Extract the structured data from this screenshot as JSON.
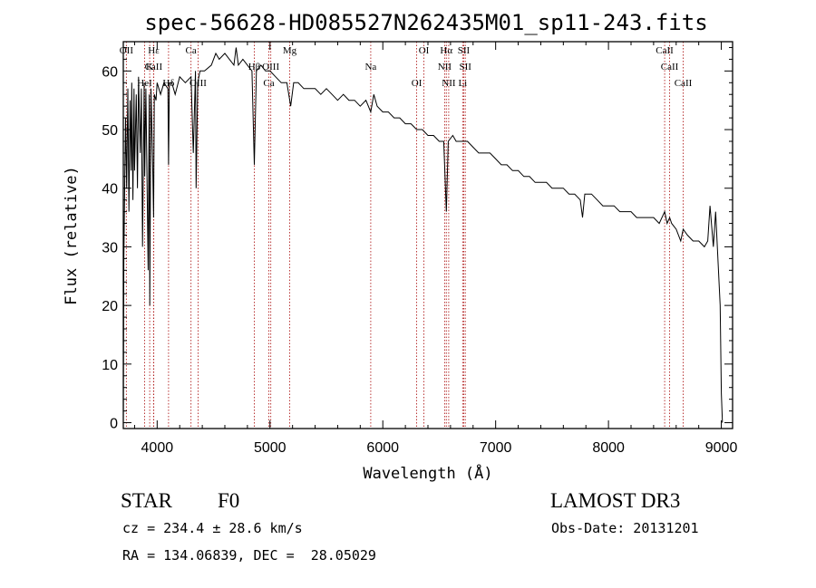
{
  "chart_data": {
    "type": "line",
    "title": "spec-56628-HD085527N262435M01_sp11-243.fits",
    "xlabel": "Wavelength (Å)",
    "ylabel": "Flux (relative)",
    "xlim": [
      3700,
      9100
    ],
    "ylim": [
      -1,
      65
    ],
    "xticks": [
      4000,
      5000,
      6000,
      7000,
      8000,
      9000
    ],
    "xtick_labels": [
      "4000",
      "5000",
      "6000",
      "7000",
      "8000",
      "9000"
    ],
    "yticks": [
      0,
      10,
      20,
      30,
      40,
      50,
      60
    ],
    "ytick_labels": [
      "0",
      "10",
      "20",
      "30",
      "40",
      "50",
      "60"
    ],
    "series": [
      {
        "name": "flux",
        "x": [
          3700,
          3705,
          3712,
          3720,
          3730,
          3740,
          3750,
          3760,
          3770,
          3775,
          3785,
          3795,
          3800,
          3815,
          3825,
          3835,
          3850,
          3860,
          3870,
          3885,
          3890,
          3900,
          3920,
          3930,
          3935,
          3945,
          3960,
          3968,
          3975,
          3990,
          4000,
          4030,
          4060,
          4095,
          4101,
          4108,
          4130,
          4160,
          4200,
          4250,
          4300,
          4320,
          4340,
          4345,
          4360,
          4380,
          4420,
          4480,
          4520,
          4550,
          4600,
          4640,
          4680,
          4700,
          4720,
          4760,
          4800,
          4840,
          4861,
          4880,
          4920,
          4960,
          5000,
          5050,
          5100,
          5150,
          5183,
          5210,
          5250,
          5300,
          5350,
          5400,
          5450,
          5500,
          5550,
          5600,
          5650,
          5700,
          5750,
          5800,
          5850,
          5893,
          5920,
          5950,
          6000,
          6050,
          6100,
          6150,
          6200,
          6250,
          6300,
          6350,
          6400,
          6450,
          6500,
          6540,
          6563,
          6580,
          6620,
          6650,
          6700,
          6750,
          6800,
          6850,
          6900,
          6950,
          7000,
          7050,
          7100,
          7150,
          7200,
          7250,
          7300,
          7350,
          7400,
          7450,
          7500,
          7550,
          7600,
          7650,
          7700,
          7750,
          7770,
          7790,
          7850,
          7900,
          7950,
          8000,
          8050,
          8100,
          8150,
          8200,
          8250,
          8300,
          8350,
          8400,
          8450,
          8498,
          8520,
          8542,
          8560,
          8600,
          8640,
          8662,
          8700,
          8750,
          8800,
          8850,
          8880,
          8900,
          8930,
          8950,
          8970,
          8990,
          9000,
          9010
        ],
        "y": [
          0,
          28,
          40,
          52,
          40,
          57,
          36,
          55,
          43,
          58,
          38,
          57,
          43,
          56,
          40,
          59,
          46,
          57,
          30,
          58,
          42,
          57,
          26,
          56,
          20,
          57,
          44,
          35,
          56,
          55,
          58,
          56,
          58,
          57,
          44,
          58,
          58,
          56,
          59,
          58,
          59,
          46,
          60,
          40,
          58,
          60,
          60,
          61,
          63,
          62,
          63,
          62,
          61,
          64,
          61,
          62,
          61,
          60,
          44,
          60,
          61,
          60,
          60,
          59,
          58,
          58,
          54,
          58,
          58,
          57,
          57,
          57,
          56,
          57,
          56,
          55,
          56,
          55,
          55,
          54,
          55,
          53,
          56,
          54,
          53,
          53,
          52,
          52,
          51,
          51,
          50,
          50,
          49,
          49,
          48,
          48,
          36,
          48,
          49,
          48,
          48,
          48,
          47,
          46,
          46,
          46,
          45,
          44,
          44,
          43,
          43,
          42,
          42,
          41,
          41,
          41,
          40,
          40,
          40,
          39,
          39,
          38,
          35,
          39,
          39,
          38,
          37,
          37,
          37,
          36,
          36,
          36,
          35,
          35,
          35,
          35,
          34,
          36,
          34,
          35,
          34,
          33,
          31,
          33,
          32,
          31,
          31,
          30,
          31,
          37,
          30,
          36,
          28,
          20,
          5,
          0
        ]
      }
    ],
    "spectral_lines": [
      {
        "label": "Hα",
        "wave": 6563
      },
      {
        "label": "Hβ",
        "wave": 4861
      },
      {
        "label": "Hδ",
        "wave": 4101
      },
      {
        "label": "Hε",
        "wave": 3970
      },
      {
        "label": "K",
        "wave": 3934
      },
      {
        "label": "HeI",
        "wave": 3889
      },
      {
        "label": "OII",
        "wave": 3727
      },
      {
        "label": "CaII",
        "wave": 3968
      },
      {
        "label": "OIII",
        "wave": 4363
      },
      {
        "label": "Ca",
        "wave": 4300
      },
      {
        "label": "OIII",
        "wave": 5007
      },
      {
        "label": "Ca",
        "wave": 4990
      },
      {
        "label": "Mg",
        "wave": 5175
      },
      {
        "label": "Na",
        "wave": 5893
      },
      {
        "label": "OI",
        "wave": 6300
      },
      {
        "label": "OI",
        "wave": 6364
      },
      {
        "label": "NII",
        "wave": 6548
      },
      {
        "label": "NII",
        "wave": 6584
      },
      {
        "label": "SII",
        "wave": 6717
      },
      {
        "label": "SII",
        "wave": 6731
      },
      {
        "label": "Li",
        "wave": 6708
      },
      {
        "label": "CaII",
        "wave": 8498
      },
      {
        "label": "CaII",
        "wave": 8542
      },
      {
        "label": "CaII",
        "wave": 8662
      }
    ]
  },
  "info": {
    "object_class": "STAR",
    "subclass": "F0",
    "survey": "LAMOST DR3",
    "cz": "cz = 234.4 ± 28.6 km/s",
    "obs_date": "Obs-Date: 20131201",
    "coords": "RA = 134.06839, DEC =  28.05029"
  }
}
